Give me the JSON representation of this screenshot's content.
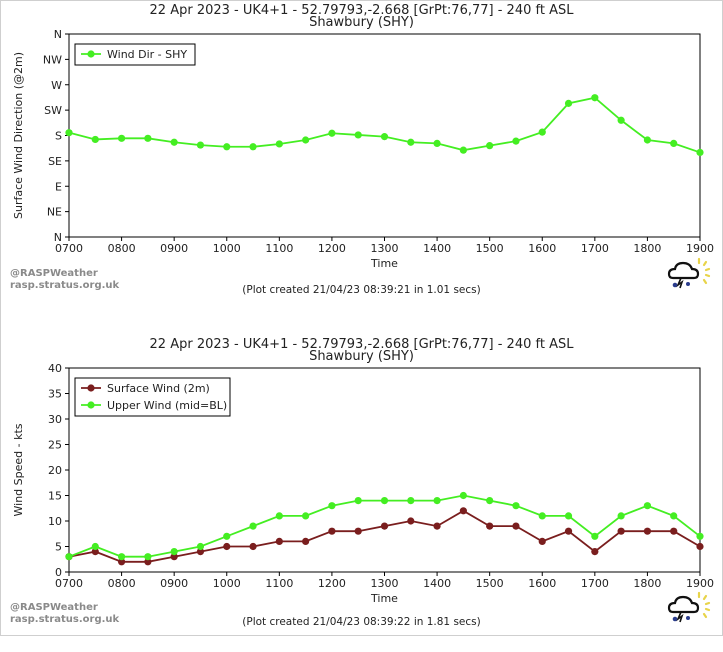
{
  "panels": [
    {
      "title_line1": "22 Apr 2023 - UK4+1 - 52.79793,-2.668 [GrPt:76,77]  - 240 ft ASL",
      "title_line2": "Shawbury (SHY)",
      "credit_line1": "@RASPWeather",
      "credit_line2": "rasp.stratus.org.uk",
      "created": "(Plot created 21/04/23 08:39:21 in 1.01 secs)"
    },
    {
      "title_line1": "22 Apr 2023 - UK4+1 - 52.79793,-2.668 [GrPt:76,77]  - 240 ft ASL",
      "title_line2": "Shawbury (SHY)",
      "credit_line1": "@RASPWeather",
      "credit_line2": "rasp.stratus.org.uk",
      "created": "(Plot created 21/04/23 08:39:22 in 1.81 secs)"
    }
  ],
  "colors": {
    "green": "#44ee22",
    "maroon": "#7a1e1e",
    "axis": "#000000"
  },
  "chart_data": [
    {
      "type": "line",
      "xlabel": "Time",
      "ylabel": "Surface Wind Direction (@2m)",
      "x_ticks": [
        "0700",
        "0800",
        "0900",
        "1000",
        "1100",
        "1200",
        "1300",
        "1400",
        "1500",
        "1600",
        "1700",
        "1800",
        "1900"
      ],
      "y_ticks": [
        "N",
        "NE",
        "E",
        "SE",
        "S",
        "SW",
        "W",
        "NW",
        "N"
      ],
      "ylim": [
        0,
        360
      ],
      "xlim": [
        "0700",
        "1900"
      ],
      "legend_position": "top-left",
      "x": [
        "0700",
        "0730",
        "0800",
        "0830",
        "0900",
        "0930",
        "1000",
        "1030",
        "1100",
        "1130",
        "1200",
        "1230",
        "1300",
        "1330",
        "1400",
        "1430",
        "1500",
        "1530",
        "1600",
        "1630",
        "1700",
        "1730",
        "1800",
        "1830",
        "1900"
      ],
      "series": [
        {
          "name": "Wind Dir - SHY",
          "color": "#44ee22",
          "values": [
            185,
            173,
            175,
            175,
            168,
            163,
            160,
            160,
            165,
            172,
            184,
            181,
            178,
            168,
            166,
            154,
            162,
            170,
            186,
            237,
            247,
            207,
            172,
            166,
            150
          ]
        }
      ]
    },
    {
      "type": "line",
      "xlabel": "Time",
      "ylabel": "Wind Speed - kts",
      "x_ticks": [
        "0700",
        "0800",
        "0900",
        "1000",
        "1100",
        "1200",
        "1300",
        "1400",
        "1500",
        "1600",
        "1700",
        "1800",
        "1900"
      ],
      "y_ticks": [
        "0",
        "5",
        "10",
        "15",
        "20",
        "25",
        "30",
        "35",
        "40"
      ],
      "ylim": [
        0,
        40
      ],
      "xlim": [
        "0700",
        "1900"
      ],
      "legend_position": "top-left",
      "x": [
        "0700",
        "0730",
        "0800",
        "0830",
        "0900",
        "0930",
        "1000",
        "1030",
        "1100",
        "1130",
        "1200",
        "1230",
        "1300",
        "1330",
        "1400",
        "1430",
        "1500",
        "1530",
        "1600",
        "1630",
        "1700",
        "1730",
        "1800",
        "1830",
        "1900"
      ],
      "series": [
        {
          "name": "Surface Wind (2m)",
          "color": "#7a1e1e",
          "values": [
            3,
            4,
            2,
            2,
            3,
            4,
            5,
            5,
            6,
            6,
            8,
            8,
            9,
            10,
            9,
            12,
            9,
            9,
            6,
            8,
            4,
            8,
            8,
            8,
            5
          ]
        },
        {
          "name": "Upper Wind (mid=BL)",
          "color": "#44ee22",
          "values": [
            3,
            5,
            3,
            3,
            4,
            5,
            7,
            9,
            11,
            11,
            13,
            14,
            14,
            14,
            14,
            15,
            14,
            13,
            11,
            11,
            7,
            11,
            13,
            11,
            7
          ]
        }
      ]
    }
  ]
}
